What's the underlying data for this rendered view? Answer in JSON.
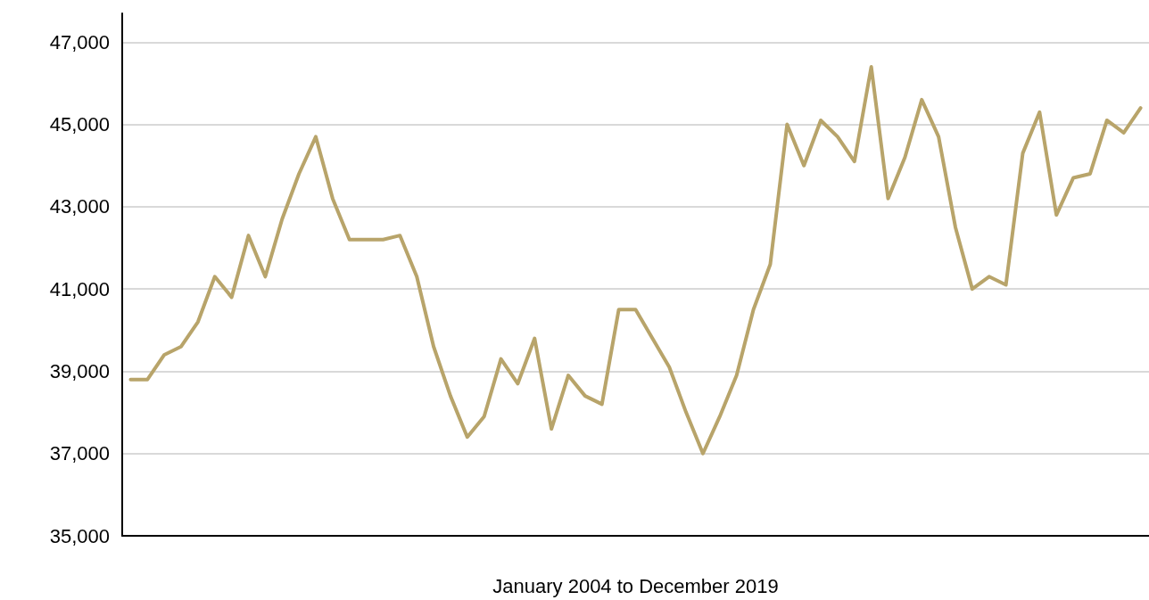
{
  "chart_data": {
    "type": "line",
    "xlabel": "January 2004 to December 2019",
    "categories": [
      null,
      null,
      null,
      null,
      null,
      null,
      null,
      null,
      null,
      null,
      null,
      null,
      null,
      null,
      null,
      null,
      null,
      null,
      null,
      null,
      null,
      null,
      null,
      null,
      null,
      null,
      null,
      null,
      null,
      null,
      null,
      null,
      null,
      null,
      null,
      null,
      null,
      null,
      null,
      null,
      null,
      null,
      null,
      null,
      null,
      null,
      null,
      null,
      null,
      null,
      null,
      null,
      null,
      null,
      null,
      null,
      null,
      null,
      null,
      null,
      null
    ],
    "series": [
      {
        "color": "#b8a46a",
        "values": [
          38800,
          38800,
          39400,
          39600,
          40200,
          41300,
          40800,
          42300,
          41300,
          42700,
          43800,
          44700,
          43200,
          42200,
          42200,
          42200,
          42300,
          41300,
          39600,
          38400,
          37400,
          37900,
          39300,
          38700,
          39800,
          37600,
          38900,
          38400,
          38200,
          40500,
          40500,
          39800,
          39100,
          38000,
          37000,
          37900,
          38900,
          40500,
          41600,
          45000,
          44000,
          45100,
          44700,
          44100,
          46400,
          43200,
          44200,
          45600,
          44700,
          42500,
          41000,
          41300,
          41100,
          44300,
          45300,
          42800,
          43700,
          43800,
          45100,
          44800,
          45400
        ]
      }
    ],
    "ylim": [
      35000,
      47700
    ],
    "yticks": [
      {
        "value": 35000,
        "label": "35,000"
      },
      {
        "value": 37000,
        "label": "37,000"
      },
      {
        "value": 39000,
        "label": "39,000"
      },
      {
        "value": 41000,
        "label": "41,000"
      },
      {
        "value": 43000,
        "label": "43,000"
      },
      {
        "value": 45000,
        "label": "45,000"
      },
      {
        "value": 47000,
        "label": "47,000"
      }
    ],
    "grid": "y",
    "marker": "none",
    "line_style": "solid"
  }
}
